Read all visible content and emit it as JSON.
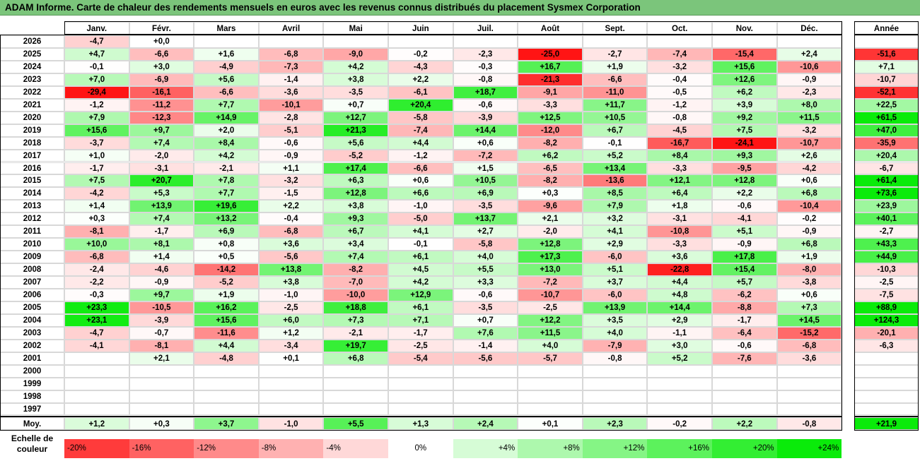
{
  "title": "ADAM Informe. Carte de chaleur des rendements mensuels en euros avec les revenus connus distribués du placement Sysmex Corporation",
  "chart_data": {
    "type": "heatmap",
    "title": "ADAM Informe. Carte de chaleur des rendements mensuels en euros avec les revenus connus distribués du placement Sysmex Corporation",
    "months": [
      "Janv.",
      "Févr.",
      "Mars",
      "Avril",
      "Mai",
      "Juin",
      "Juil.",
      "Août",
      "Sept.",
      "Oct.",
      "Nov.",
      "Déc."
    ],
    "year_header": "Année",
    "rows": [
      {
        "year": "2026",
        "values": [
          "-4,7",
          "+0,0",
          "",
          "",
          "",
          "",
          "",
          "",
          "",
          "",
          "",
          ""
        ],
        "annual": ""
      },
      {
        "year": "2025",
        "values": [
          "+4,7",
          "-6,6",
          "+1,6",
          "-6,8",
          "-9,0",
          "-0,2",
          "-2,3",
          "-25,0",
          "-2,7",
          "-7,4",
          "-15,4",
          "+2,4"
        ],
        "annual": "-51,6"
      },
      {
        "year": "2024",
        "values": [
          "-0,1",
          "+3,0",
          "-4,9",
          "-7,3",
          "+4,2",
          "-4,3",
          "-0,3",
          "+16,7",
          "+1,9",
          "-3,2",
          "+15,6",
          "-10,6"
        ],
        "annual": "+7,1"
      },
      {
        "year": "2023",
        "values": [
          "+7,0",
          "-6,9",
          "+5,6",
          "-1,4",
          "+3,8",
          "+2,2",
          "-0,8",
          "-21,3",
          "-6,6",
          "-0,4",
          "+12,6",
          "-0,9"
        ],
        "annual": "-10,7"
      },
      {
        "year": "2022",
        "values": [
          "-29,4",
          "-16,1",
          "-6,6",
          "-3,6",
          "-3,5",
          "-6,1",
          "+18,7",
          "-9,1",
          "-11,0",
          "-0,5",
          "+6,2",
          "-2,3"
        ],
        "annual": "-52,1"
      },
      {
        "year": "2021",
        "values": [
          "-1,2",
          "-11,2",
          "+7,7",
          "-10,1",
          "+0,7",
          "+20,4",
          "-0,6",
          "-3,3",
          "+11,7",
          "-1,2",
          "+3,9",
          "+8,0"
        ],
        "annual": "+22,5"
      },
      {
        "year": "2020",
        "values": [
          "+7,9",
          "-12,3",
          "+14,9",
          "-2,8",
          "+12,7",
          "-5,8",
          "-3,9",
          "+12,5",
          "+10,5",
          "-0,8",
          "+9,2",
          "+11,5"
        ],
        "annual": "+61,5"
      },
      {
        "year": "2019",
        "values": [
          "+15,6",
          "+9,7",
          "+2,0",
          "-5,1",
          "+21,3",
          "-7,4",
          "+14,4",
          "-12,0",
          "+6,7",
          "-4,5",
          "+7,5",
          "-3,2"
        ],
        "annual": "+47,0"
      },
      {
        "year": "2018",
        "values": [
          "-3,7",
          "+7,4",
          "+8,4",
          "-0,6",
          "+5,6",
          "+4,4",
          "+0,6",
          "-8,2",
          "-0,1",
          "-16,7",
          "-24,1",
          "-10,7"
        ],
        "annual": "-35,9"
      },
      {
        "year": "2017",
        "values": [
          "+1,0",
          "-2,0",
          "+4,2",
          "-0,9",
          "-5,2",
          "-1,2",
          "-7,2",
          "+6,2",
          "+5,2",
          "+8,4",
          "+9,3",
          "+2,6"
        ],
        "annual": "+20,4"
      },
      {
        "year": "2016",
        "values": [
          "-1,7",
          "-3,1",
          "-2,1",
          "+1,1",
          "+17,4",
          "-6,6",
          "+1,5",
          "-6,5",
          "+13,4",
          "-3,3",
          "-9,5",
          "-4,2"
        ],
        "annual": "-6,7"
      },
      {
        "year": "2015",
        "values": [
          "+7,5",
          "+20,7",
          "+7,8",
          "-3,2",
          "+6,3",
          "+0,6",
          "+10,5",
          "-8,2",
          "-13,6",
          "+12,1",
          "+12,8",
          "+0,6"
        ],
        "annual": "+61,4"
      },
      {
        "year": "2014",
        "values": [
          "-4,2",
          "+5,3",
          "+7,7",
          "-1,5",
          "+12,8",
          "+6,6",
          "+6,9",
          "+0,3",
          "+8,5",
          "+6,4",
          "+2,2",
          "+6,8"
        ],
        "annual": "+73,6"
      },
      {
        "year": "2013",
        "values": [
          "+1,4",
          "+13,9",
          "+19,6",
          "+2,2",
          "+3,8",
          "-1,0",
          "-3,5",
          "-9,6",
          "+7,9",
          "+1,8",
          "-0,6",
          "-10,4"
        ],
        "annual": "+23,9"
      },
      {
        "year": "2012",
        "values": [
          "+0,3",
          "+7,4",
          "+13,2",
          "-0,4",
          "+9,3",
          "-5,0",
          "+13,7",
          "+2,1",
          "+3,2",
          "-3,1",
          "-4,1",
          "-0,2"
        ],
        "annual": "+40,1"
      },
      {
        "year": "2011",
        "values": [
          "-8,1",
          "-1,7",
          "+6,9",
          "-6,8",
          "+6,7",
          "+4,1",
          "+2,7",
          "-2,0",
          "+4,1",
          "-10,8",
          "+5,1",
          "-0,9"
        ],
        "annual": "-2,7"
      },
      {
        "year": "2010",
        "values": [
          "+10,0",
          "+8,1",
          "+0,8",
          "+3,6",
          "+3,4",
          "-0,1",
          "-5,8",
          "+12,8",
          "+2,9",
          "-3,3",
          "-0,9",
          "+6,8"
        ],
        "annual": "+43,3"
      },
      {
        "year": "2009",
        "values": [
          "-6,8",
          "+1,4",
          "+0,5",
          "-5,6",
          "+7,4",
          "+6,1",
          "+4,0",
          "+17,3",
          "-6,0",
          "+3,6",
          "+17,8",
          "+1,9"
        ],
        "annual": "+44,9"
      },
      {
        "year": "2008",
        "values": [
          "-2,4",
          "-4,6",
          "-14,2",
          "+13,8",
          "-8,2",
          "+4,5",
          "+5,5",
          "+13,0",
          "+5,1",
          "-22,8",
          "+15,4",
          "-8,0"
        ],
        "annual": "-10,3"
      },
      {
        "year": "2007",
        "values": [
          "-2,2",
          "-0,9",
          "-5,2",
          "+3,8",
          "-7,0",
          "+4,2",
          "+3,3",
          "-7,2",
          "+3,7",
          "+4,4",
          "+5,7",
          "-3,8"
        ],
        "annual": "-2,5"
      },
      {
        "year": "2006",
        "values": [
          "-0,3",
          "+9,7",
          "+1,9",
          "-1,0",
          "-10,0",
          "+12,9",
          "-0,6",
          "-10,7",
          "-6,0",
          "+4,8",
          "-6,2",
          "+0,6"
        ],
        "annual": "-7,5"
      },
      {
        "year": "2005",
        "values": [
          "+23,3",
          "-10,5",
          "+16,2",
          "-2,5",
          "+18,8",
          "+6,1",
          "-3,5",
          "-2,5",
          "+13,9",
          "+14,4",
          "-8,8",
          "+7,3"
        ],
        "annual": "+88,9"
      },
      {
        "year": "2004",
        "values": [
          "+23,1",
          "-3,9",
          "+15,6",
          "+6,0",
          "+7,3",
          "+7,1",
          "+0,7",
          "+12,2",
          "+3,5",
          "+2,9",
          "-1,7",
          "+14,5"
        ],
        "annual": "+124,3"
      },
      {
        "year": "2003",
        "values": [
          "-4,7",
          "-0,7",
          "-11,6",
          "+1,2",
          "-2,1",
          "-1,7",
          "+7,6",
          "+11,5",
          "+4,0",
          "-1,1",
          "-6,4",
          "-15,2"
        ],
        "annual": "-20,1"
      },
      {
        "year": "2002",
        "values": [
          "-4,1",
          "-8,1",
          "+4,4",
          "-3,4",
          "+19,7",
          "-2,5",
          "-1,4",
          "+4,0",
          "-7,9",
          "+3,0",
          "-0,6",
          "-6,8"
        ],
        "annual": "-6,3"
      },
      {
        "year": "2001",
        "values": [
          "",
          "+2,1",
          "-4,8",
          "+0,1",
          "+6,8",
          "-5,4",
          "-5,6",
          "-5,7",
          "-0,8",
          "+5,2",
          "-7,6",
          "-3,6"
        ],
        "annual": ""
      },
      {
        "year": "2000",
        "values": [
          "",
          "",
          "",
          "",
          "",
          "",
          "",
          "",
          "",
          "",
          "",
          ""
        ],
        "annual": ""
      },
      {
        "year": "1999",
        "values": [
          "",
          "",
          "",
          "",
          "",
          "",
          "",
          "",
          "",
          "",
          "",
          ""
        ],
        "annual": ""
      },
      {
        "year": "1998",
        "values": [
          "",
          "",
          "",
          "",
          "",
          "",
          "",
          "",
          "",
          "",
          "",
          ""
        ],
        "annual": ""
      },
      {
        "year": "1997",
        "values": [
          "",
          "",
          "",
          "",
          "",
          "",
          "",
          "",
          "",
          "",
          "",
          ""
        ],
        "annual": ""
      }
    ],
    "average": {
      "label": "Moy.",
      "values": [
        "+1,2",
        "+0,3",
        "+3,7",
        "-1,0",
        "+5,5",
        "+1,3",
        "+2,4",
        "+0,1",
        "+2,3",
        "-0,2",
        "+2,2",
        "-0,8"
      ],
      "annual": "+21,9"
    },
    "legend": {
      "label": "Echelle de couleur",
      "steps": [
        "-20%",
        "-16%",
        "-12%",
        "-8%",
        "-4%",
        "0%",
        "+4%",
        "+8%",
        "+12%",
        "+16%",
        "+20%",
        "+24%"
      ]
    },
    "colors": {
      "negative": "#ff0000",
      "positive": "#00ee00",
      "neutral": "#ffffff",
      "title_bar": "#7bc57b"
    }
  }
}
